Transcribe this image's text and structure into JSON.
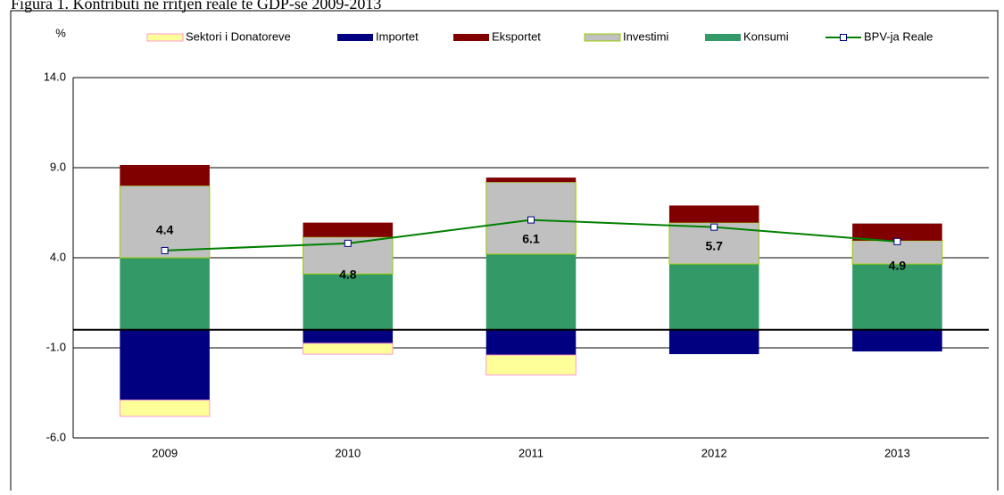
{
  "chart_data": {
    "type": "stacked_bar_line",
    "title": "Figura 1. Kontributi ne rritjen reale te GDP-se 2009-2013",
    "y_label": "%",
    "categories": [
      "2009",
      "2010",
      "2011",
      "2012",
      "2013"
    ],
    "series": [
      {
        "name": "Sektori i Donatoreve",
        "color": "#ffff99",
        "stroke": "#ff99cc",
        "values": [
          -0.9,
          -0.6,
          -1.1,
          0,
          0
        ]
      },
      {
        "name": "Importet",
        "color": "#000080",
        "values": [
          -3.9,
          -0.75,
          -1.4,
          -1.35,
          -1.2
        ]
      },
      {
        "name": "Eksportet",
        "color": "#800000",
        "values": [
          1.15,
          0.8,
          0.25,
          0.95,
          0.95
        ]
      },
      {
        "name": "Investimi",
        "color": "#c0c0c0",
        "stroke": "#99cc00",
        "values": [
          4.0,
          2.05,
          4.0,
          2.3,
          1.3
        ]
      },
      {
        "name": "Konsumi",
        "color": "#339966",
        "values": [
          4.0,
          3.1,
          4.2,
          3.65,
          3.65
        ]
      },
      {
        "name": "BPV-ja Reale",
        "type": "line",
        "color": "#008000",
        "values": [
          4.4,
          4.8,
          6.1,
          5.7,
          4.9
        ]
      }
    ],
    "ylim": [
      -6,
      14
    ],
    "yticks": [
      {
        "value": -6,
        "label": "-6.0"
      },
      {
        "value": -1,
        "label": "-1.0"
      },
      {
        "value": 4,
        "label": "4.0"
      },
      {
        "value": 9,
        "label": "9.0"
      },
      {
        "value": 14,
        "label": "14.0"
      }
    ],
    "grid": true
  }
}
